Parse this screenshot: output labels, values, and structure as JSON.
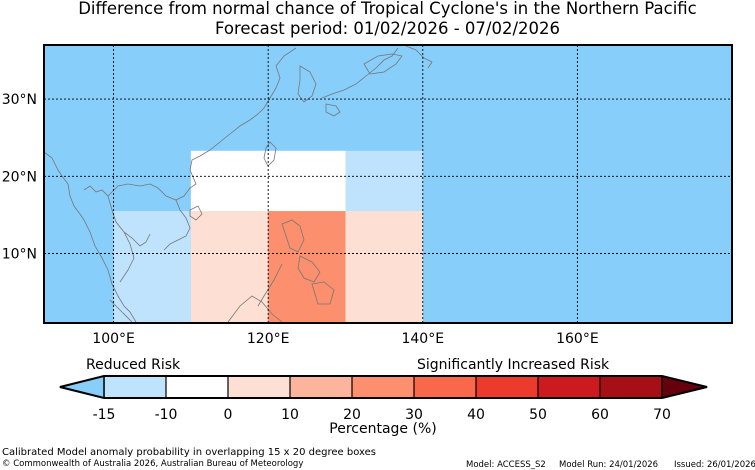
{
  "title": {
    "line1": "Difference from normal chance of Tropical Cyclone's in the Northern Pacific",
    "line2": "Forecast period: 01/02/2026 - 07/02/2026"
  },
  "map": {
    "lon_range": [
      91,
      180
    ],
    "lat_range": [
      1,
      37
    ],
    "lon_ticks": [
      {
        "value": 100,
        "label": "100°E"
      },
      {
        "value": 120,
        "label": "120°E"
      },
      {
        "value": 140,
        "label": "140°E"
      },
      {
        "value": 160,
        "label": "160°E"
      }
    ],
    "lat_ticks": [
      {
        "value": 30,
        "label": "30°N"
      },
      {
        "value": 20,
        "label": "20°N"
      },
      {
        "value": 10,
        "label": "10°N"
      }
    ],
    "gridlines": "dotted",
    "background_color": "#87cefa",
    "cells": [
      {
        "lon": [
          100,
          110
        ],
        "lat": [
          1,
          15.5
        ],
        "value": -12.5,
        "color": "#bfe3fc"
      },
      {
        "lon": [
          110,
          120
        ],
        "lat": [
          1,
          15.5
        ],
        "value": 5,
        "color": "#fde0d3"
      },
      {
        "lon": [
          120,
          130
        ],
        "lat": [
          1,
          15.5
        ],
        "value": 25,
        "color": "#fc8f6d"
      },
      {
        "lon": [
          130,
          140
        ],
        "lat": [
          1,
          15.5
        ],
        "value": 5,
        "color": "#fde0d3"
      },
      {
        "lon": [
          110,
          130
        ],
        "lat": [
          15.5,
          23.3
        ],
        "value": -5,
        "color": "#ffffff"
      },
      {
        "lon": [
          130,
          140
        ],
        "lat": [
          15.5,
          23.3
        ],
        "value": -12.5,
        "color": "#bfe3fc"
      }
    ]
  },
  "colorbar": {
    "left_label": "Reduced Risk",
    "right_label": "Significantly Increased Risk",
    "xlabel": "Percentage (%)",
    "ticks": [
      "-15",
      "-10",
      "0",
      "10",
      "20",
      "30",
      "40",
      "50",
      "60",
      "70"
    ],
    "under_color": "#87cefa",
    "over_color": "#67000d",
    "colors": [
      "#bfe3fc",
      "#ffffff",
      "#fde0d3",
      "#fcb59c",
      "#fc8f6d",
      "#f9684b",
      "#ec3a2c",
      "#cc1a1e",
      "#a50f15"
    ]
  },
  "footer": {
    "description": "Calibrated Model anomaly probability in overlapping 15 x 20 degree boxes",
    "copyright": "© Commonwealth of Australia 2026, Australian Bureau of Meteorology",
    "model": "Model: ACCESS_S2",
    "model_run": "Model Run: 24/01/2026",
    "issued": "Issued: 26/01/2026"
  }
}
